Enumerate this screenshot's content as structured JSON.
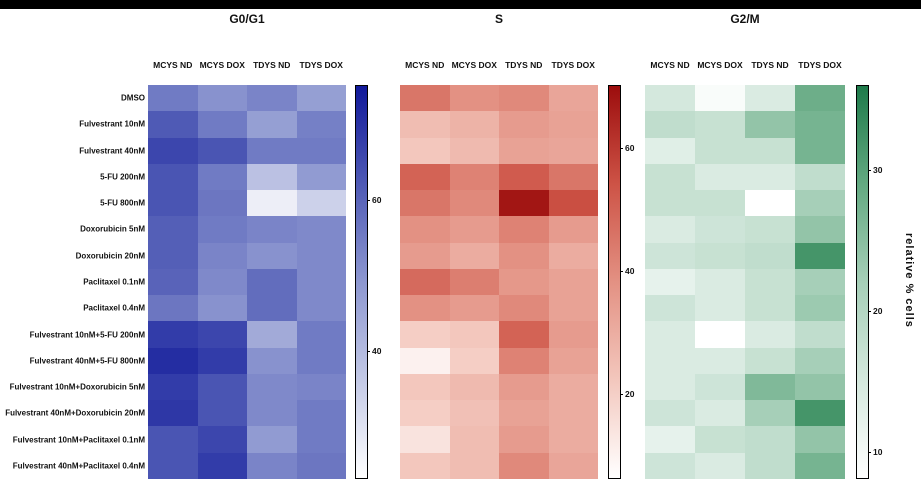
{
  "chart_data": {
    "type": "heatmap",
    "columns": [
      "MCYS ND",
      "MCYS DOX",
      "TDYS ND",
      "TDYS DOX"
    ],
    "rows": [
      "DMSO",
      "Fulvestrant 10nM",
      "Fulvestrant 40nM",
      "5-FU 200nM",
      "5-FU 800nM",
      "Doxorubicin 5nM",
      "Doxorubicin 20nM",
      "Paclitaxel 0.1nM",
      "Paclitaxel 0.4nM",
      "Fulvestrant 10nM+5-FU 200nM",
      "Fulvestrant 40nM+5-FU 800nM",
      "Fulvestrant 10nM+Doxorubicin 5nM",
      "Fulvestrant 40nM+Doxorubicin 20nM",
      "Fulvestrant 10nM+Paclitaxel 0.1nM",
      "Fulvestrant 40nM+Paclitaxel 0.4nM"
    ],
    "colorbar_label": "relative % cells",
    "panels": [
      {
        "title": "G0/G1",
        "colormap": [
          "#ffffff",
          "#c3c9e6",
          "#8d97d0",
          "#4f5ab5",
          "#11199a"
        ],
        "vmin": 23,
        "vmax": 75,
        "colorbar_ticks": [
          40,
          60
        ],
        "values": [
          [
            55,
            50,
            53,
            47
          ],
          [
            62,
            55,
            47,
            54
          ],
          [
            66,
            63,
            55,
            55
          ],
          [
            63,
            55,
            38,
            48
          ],
          [
            63,
            56,
            27,
            34
          ],
          [
            61,
            55,
            53,
            52
          ],
          [
            61,
            53,
            50,
            52
          ],
          [
            60,
            52,
            58,
            52
          ],
          [
            56,
            50,
            58,
            52
          ],
          [
            68,
            66,
            44,
            55
          ],
          [
            71,
            68,
            50,
            55
          ],
          [
            68,
            63,
            52,
            53
          ],
          [
            69,
            63,
            52,
            55
          ],
          [
            63,
            66,
            48,
            55
          ],
          [
            63,
            68,
            53,
            56
          ]
        ]
      },
      {
        "title": "S",
        "colormap": [
          "#ffffff",
          "#f3c7bd",
          "#e39183",
          "#cd5346",
          "#9c0d0d"
        ],
        "vmin": 6,
        "vmax": 70,
        "colorbar_ticks": [
          20,
          40,
          60
        ],
        "values": [
          [
            45,
            38,
            40,
            32
          ],
          [
            25,
            28,
            35,
            33
          ],
          [
            22,
            26,
            33,
            32
          ],
          [
            50,
            42,
            52,
            45
          ],
          [
            45,
            40,
            68,
            55
          ],
          [
            38,
            35,
            42,
            35
          ],
          [
            35,
            30,
            38,
            30
          ],
          [
            48,
            43,
            36,
            33
          ],
          [
            38,
            35,
            40,
            33
          ],
          [
            20,
            22,
            50,
            35
          ],
          [
            10,
            20,
            42,
            33
          ],
          [
            22,
            26,
            35,
            30
          ],
          [
            20,
            24,
            33,
            30
          ],
          [
            14,
            25,
            35,
            30
          ],
          [
            22,
            25,
            40,
            32
          ]
        ]
      },
      {
        "title": "G2/M",
        "colormap": [
          "#ffffff",
          "#d4e8dd",
          "#a6cfb8",
          "#63a981",
          "#1e7a4a"
        ],
        "vmin": 8,
        "vmax": 36,
        "colorbar_ticks": [
          10,
          20,
          30
        ],
        "values": [
          [
            15,
            9,
            14,
            28
          ],
          [
            18,
            17,
            24,
            27
          ],
          [
            13,
            17,
            17,
            27
          ],
          [
            17,
            14,
            14,
            18
          ],
          [
            17,
            17,
            8,
            22
          ],
          [
            14,
            16,
            17,
            24
          ],
          [
            16,
            17,
            18,
            32
          ],
          [
            12,
            14,
            17,
            22
          ],
          [
            16,
            14,
            17,
            23
          ],
          [
            14,
            8,
            14,
            18
          ],
          [
            14,
            14,
            17,
            22
          ],
          [
            14,
            16,
            26,
            24
          ],
          [
            16,
            14,
            22,
            32
          ],
          [
            12,
            17,
            18,
            24
          ],
          [
            16,
            14,
            18,
            27
          ]
        ]
      }
    ]
  }
}
